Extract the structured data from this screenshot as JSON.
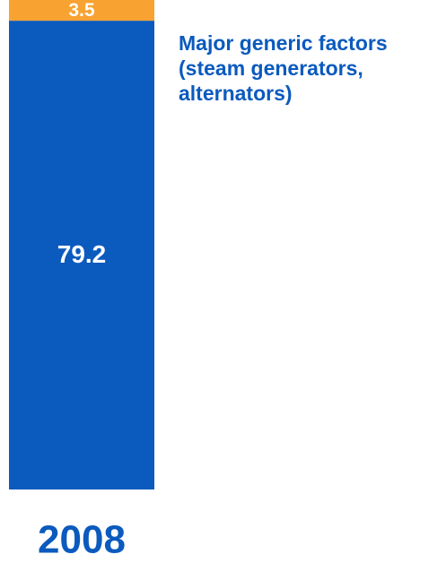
{
  "chart_data": {
    "type": "stacked_bar",
    "categories": [
      "2008"
    ],
    "series": [
      {
        "values": [
          79.2
        ],
        "color": "#0b5abe"
      },
      {
        "name": "Major generic factors (steam generators, alternators)",
        "values": [
          3.5
        ],
        "color": "#f8a232"
      }
    ]
  }
}
